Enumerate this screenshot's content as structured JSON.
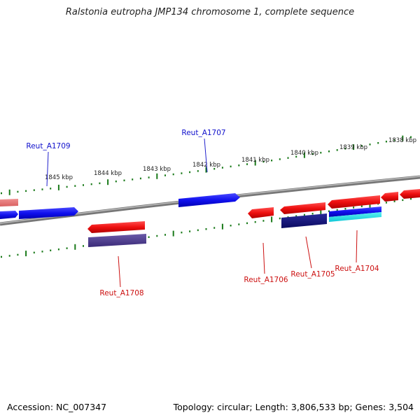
{
  "title": "Ralstonia eutropha JMP134 chromosome 1, complete sequence",
  "footer": {
    "accession": "Accession: NC_007347",
    "summary": "Topology: circular; Length: 3,806,533 bp; Genes: 3,504"
  },
  "colors": {
    "forward_gene": "#1010ee",
    "reverse_gene": "#ee1010",
    "backbone": "#888888",
    "ticks": "#1a7a1a",
    "forward_label": "#1010cc",
    "reverse_label": "#cc1010"
  },
  "scale_labels": [
    "1845 kbp",
    "1844 kbp",
    "1843 kbp",
    "1842 kbp",
    "1841 kbp",
    "1840 kbp",
    "1839 kbp",
    "1838 kbp"
  ],
  "gene_labels": {
    "forward": [
      "Reut_A1709",
      "Reut_A1707"
    ],
    "reverse": [
      "Reut_A1708",
      "Reut_A1706",
      "Reut_A1705",
      "Reut_A1704"
    ]
  }
}
